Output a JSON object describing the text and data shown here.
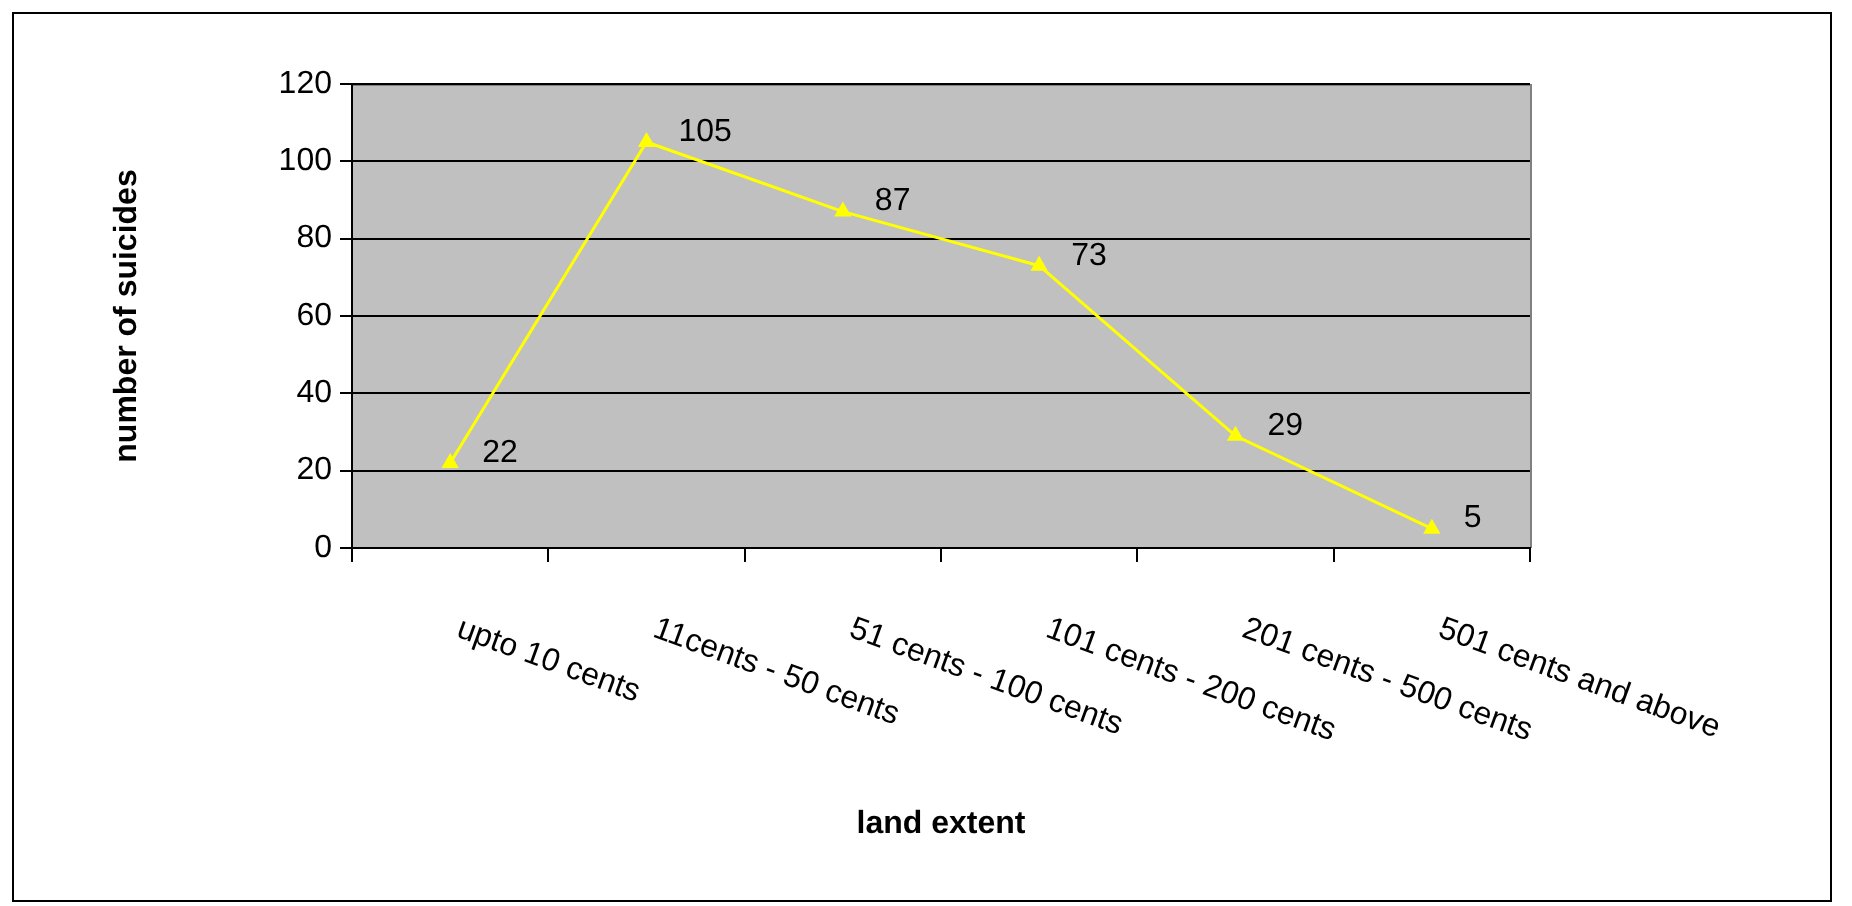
{
  "chart_data": {
    "type": "line",
    "xlabel": "land extent",
    "ylabel": "number of suicides",
    "categories": [
      "upto 10 cents",
      "11cents - 50 cents",
      "51 cents - 100 cents",
      "101 cents - 200 cents",
      "201 cents - 500 cents",
      "501 cents and above"
    ],
    "series": [
      {
        "color": "#ffff00",
        "values": [
          22,
          105,
          87,
          73,
          29,
          5
        ]
      }
    ],
    "ylim": [
      0,
      120
    ],
    "yticks": [
      0,
      20,
      40,
      60,
      80,
      100,
      120
    ],
    "grid": "y",
    "legend": false,
    "marker": "triangle",
    "line_style": "solid",
    "data_labels": true
  }
}
